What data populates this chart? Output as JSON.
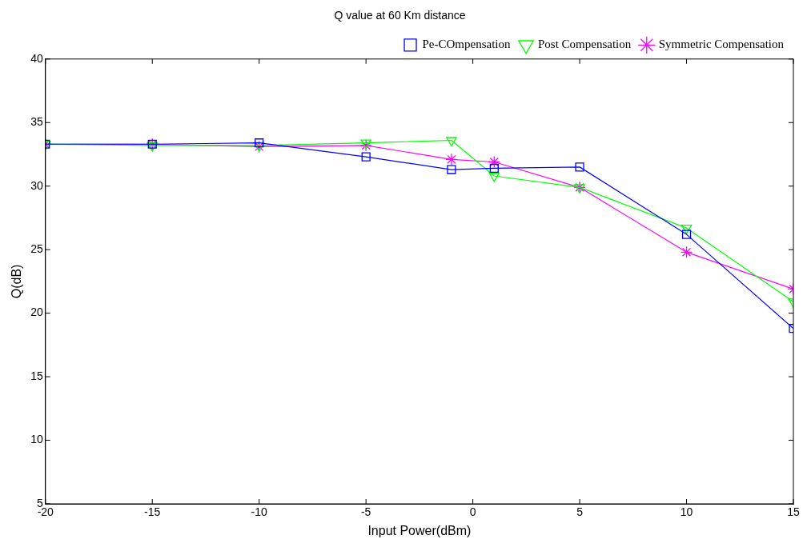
{
  "chart_data": {
    "type": "line",
    "title": "Q value at 60 Km distance",
    "xlabel": "Input Power(dBm)",
    "ylabel": "Q(dB)",
    "x": [
      -20,
      -15,
      -10,
      -5,
      -1,
      1,
      5,
      10,
      15
    ],
    "xlim": [
      -20,
      15
    ],
    "xticks": [
      -20,
      -15,
      -10,
      -5,
      0,
      5,
      10,
      15
    ],
    "ylim": [
      5,
      40
    ],
    "yticks": [
      5,
      10,
      15,
      20,
      25,
      30,
      35,
      40
    ],
    "grid": false,
    "legend": "top right",
    "series": [
      {
        "name": "Pe-COmpensation",
        "color": "#0000ff",
        "marker": "square",
        "values": [
          33.3,
          33.3,
          33.4,
          32.3,
          31.3,
          31.4,
          31.5,
          26.2,
          18.8
        ]
      },
      {
        "name": "Post Compensation",
        "color": "#00ff00",
        "marker": "triangle",
        "values": [
          33.3,
          33.2,
          33.2,
          33.4,
          33.6,
          30.8,
          29.9,
          26.7,
          20.9
        ]
      },
      {
        "name": "Symmetric Compensation",
        "color": "#ff00ff",
        "marker": "cross",
        "values": [
          33.3,
          33.3,
          33.1,
          33.2,
          32.1,
          31.9,
          29.9,
          24.8,
          21.9
        ]
      }
    ]
  }
}
